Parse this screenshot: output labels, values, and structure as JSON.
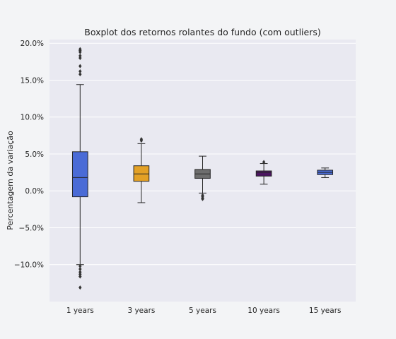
{
  "chart_data": {
    "type": "boxplot",
    "title": "Boxplot dos retornos rolantes do fundo (com outliers)",
    "xlabel": "",
    "ylabel": "Percentagem da variação",
    "categories": [
      "1 years",
      "3 years",
      "5 years",
      "10 years",
      "15 years"
    ],
    "ylim": [
      -15,
      20.5
    ],
    "yticks": [
      -10,
      -5,
      0,
      5,
      10,
      15,
      20
    ],
    "ytick_labels": [
      "−10.0%",
      "−5.0%",
      "0.0%",
      "5.0%",
      "10.0%",
      "15.0%",
      "20.0%"
    ],
    "grid": true,
    "legend": "none",
    "boxes": [
      {
        "category": "1 years",
        "color": "#4a6bd6",
        "whisker_low": -10.0,
        "q1": -0.8,
        "median": 1.8,
        "q3": 5.3,
        "whisker_high": 14.4,
        "outliers": [
          19.2,
          19.0,
          18.8,
          18.3,
          18.0,
          16.9,
          16.2,
          15.8,
          -10.2,
          -10.6,
          -11.0,
          -11.3,
          -11.6,
          -13.1
        ]
      },
      {
        "category": "3 years",
        "color": "#e3a126",
        "whisker_low": -1.6,
        "q1": 1.3,
        "median": 2.3,
        "q3": 3.4,
        "whisker_high": 6.4,
        "outliers": [
          6.8,
          7.0
        ]
      },
      {
        "category": "5 years",
        "color": "#6e6e6e",
        "whisker_low": -0.3,
        "q1": 1.7,
        "median": 2.3,
        "q3": 2.9,
        "whisker_high": 4.7,
        "outliers": [
          -0.6,
          -0.8,
          -1.0,
          -1.1
        ]
      },
      {
        "category": "10 years",
        "color": "#4b1560",
        "whisker_low": 0.9,
        "q1": 2.0,
        "median": 2.5,
        "q3": 2.7,
        "whisker_high": 3.7,
        "outliers": [
          3.9
        ]
      },
      {
        "category": "15 years",
        "color": "#4a6bd6",
        "whisker_low": 1.8,
        "q1": 2.2,
        "median": 2.5,
        "q3": 2.8,
        "whisker_high": 3.1,
        "outliers": []
      }
    ]
  }
}
